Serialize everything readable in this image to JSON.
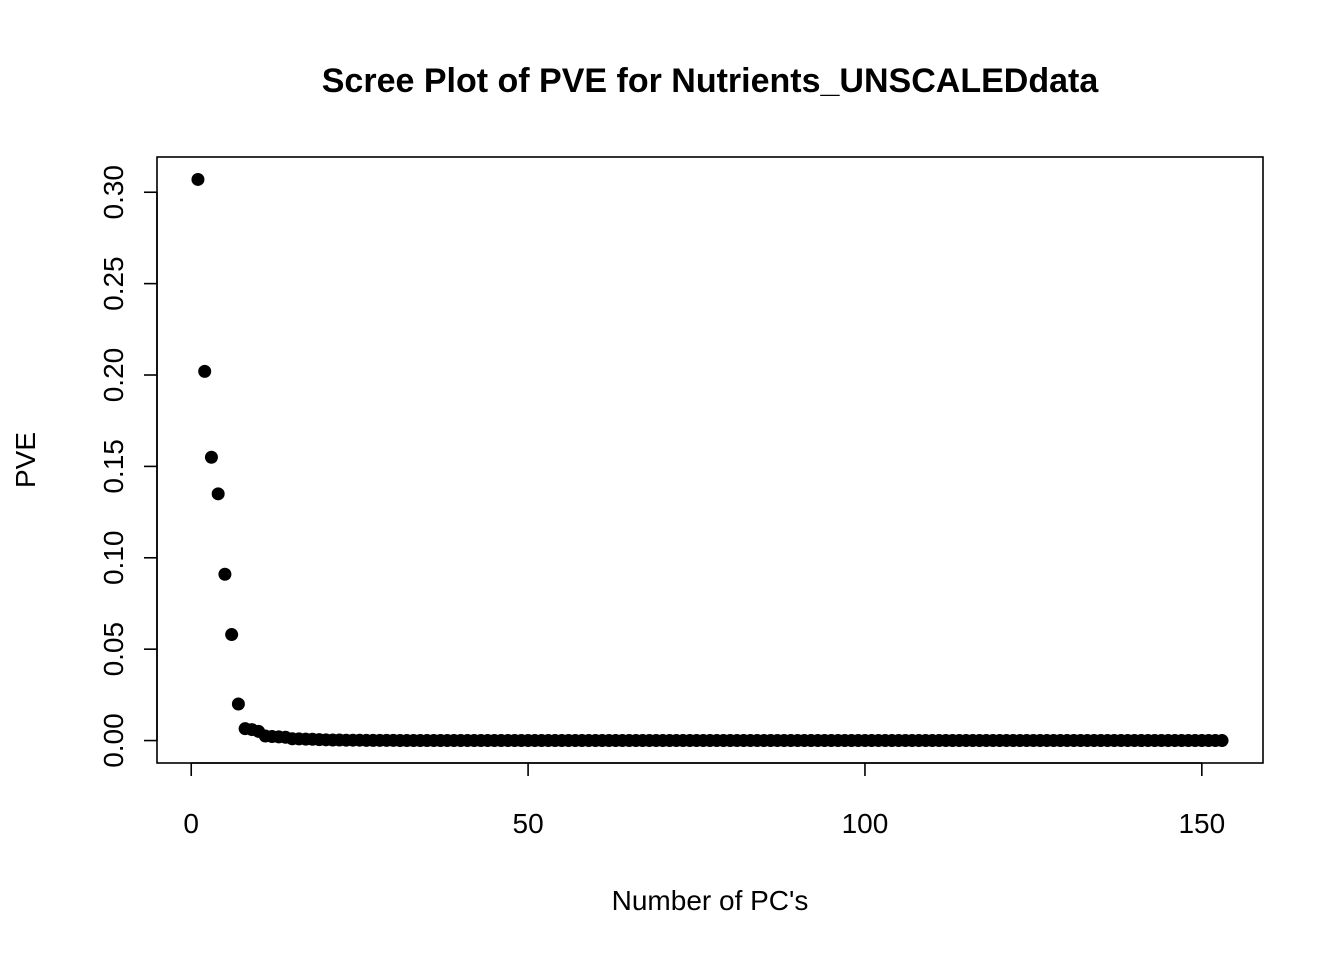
{
  "chart_data": {
    "type": "scatter",
    "title": "Scree Plot of PVE for Nutrients_UNSCALEDdata",
    "xlabel": "Number of PC's",
    "ylabel": "PVE",
    "xlim": [
      1,
      153
    ],
    "ylim": [
      0,
      0.307
    ],
    "x_ticks": [
      0,
      50,
      100,
      150
    ],
    "x_tick_labels": [
      "0",
      "50",
      "100",
      "150"
    ],
    "y_ticks": [
      0,
      0.05,
      0.1,
      0.15,
      0.2,
      0.25,
      0.3
    ],
    "y_tick_labels": [
      "0.00",
      "0.05",
      "0.10",
      "0.15",
      "0.20",
      "0.25",
      "0.30"
    ],
    "grid": false,
    "legend": "none",
    "point_color": "#000000",
    "series": [
      {
        "x": [
          1,
          2,
          3,
          4,
          5,
          6,
          7,
          8,
          9,
          10,
          11,
          12,
          13,
          14,
          15,
          16,
          17,
          18,
          19,
          20,
          21,
          22,
          23,
          24,
          25,
          26,
          27,
          28,
          29,
          30,
          31,
          32,
          33,
          34,
          35,
          36,
          37,
          38,
          39,
          40,
          41,
          42,
          43,
          44,
          45,
          46,
          47,
          48,
          49,
          50,
          51,
          52,
          53,
          54,
          55,
          56,
          57,
          58,
          59,
          60,
          61,
          62,
          63,
          64,
          65,
          66,
          67,
          68,
          69,
          70,
          71,
          72,
          73,
          74,
          75,
          76,
          77,
          78,
          79,
          80,
          81,
          82,
          83,
          84,
          85,
          86,
          87,
          88,
          89,
          90,
          91,
          92,
          93,
          94,
          95,
          96,
          97,
          98,
          99,
          100,
          101,
          102,
          103,
          104,
          105,
          106,
          107,
          108,
          109,
          110,
          111,
          112,
          113,
          114,
          115,
          116,
          117,
          118,
          119,
          120,
          121,
          122,
          123,
          124,
          125,
          126,
          127,
          128,
          129,
          130,
          131,
          132,
          133,
          134,
          135,
          136,
          137,
          138,
          139,
          140,
          141,
          142,
          143,
          144,
          145,
          146,
          147,
          148,
          149,
          150,
          151,
          152,
          153
        ],
        "y": [
          0.307,
          0.202,
          0.155,
          0.135,
          0.091,
          0.058,
          0.02,
          0.0065,
          0.006,
          0.005,
          0.0025,
          0.0022,
          0.002,
          0.0018,
          0.001,
          0.0009,
          0.0008,
          0.0007,
          0.0005,
          0.0004,
          0.0003,
          0.0003,
          0.0002,
          0.0002,
          0.0002,
          0.0001,
          0.0001,
          0.0001,
          0.0001,
          0.0001,
          0,
          0,
          0,
          0,
          0,
          0,
          0,
          0,
          0,
          0,
          0,
          0,
          0,
          0,
          0,
          0,
          0,
          0,
          0,
          0,
          0,
          0,
          0,
          0,
          0,
          0,
          0,
          0,
          0,
          0,
          0,
          0,
          0,
          0,
          0,
          0,
          0,
          0,
          0,
          0,
          0,
          0,
          0,
          0,
          0,
          0,
          0,
          0,
          0,
          0,
          0,
          0,
          0,
          0,
          0,
          0,
          0,
          0,
          0,
          0,
          0,
          0,
          0,
          0,
          0,
          0,
          0,
          0,
          0,
          0,
          0,
          0,
          0,
          0,
          0,
          0,
          0,
          0,
          0,
          0,
          0,
          0,
          0,
          0,
          0,
          0,
          0,
          0,
          0,
          0,
          0,
          0,
          0,
          0,
          0,
          0,
          0,
          0,
          0,
          0,
          0,
          0,
          0,
          0,
          0,
          0,
          0,
          0,
          0,
          0,
          0,
          0,
          0,
          0,
          0,
          0,
          0,
          0,
          0,
          0,
          0,
          0,
          0
        ]
      }
    ]
  }
}
